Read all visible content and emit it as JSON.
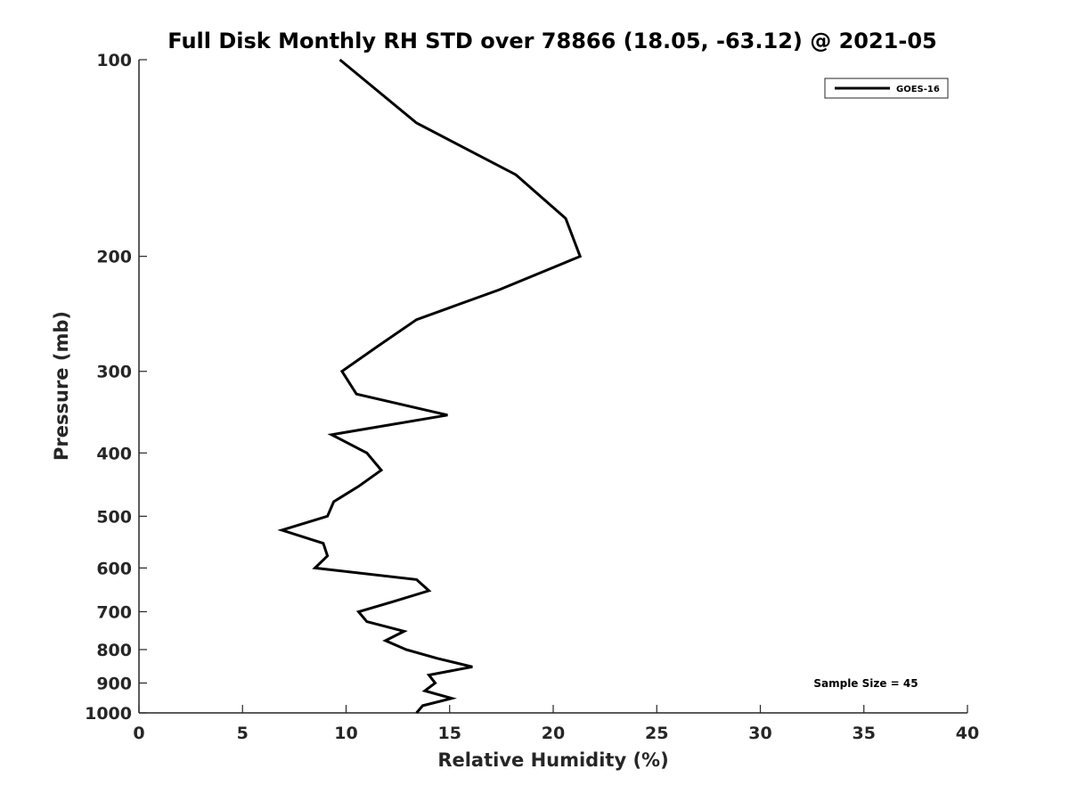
{
  "chart_data": {
    "type": "line",
    "title": "Full Disk Monthly RH STD over 78866 (18.05, -63.12) @ 2021-05",
    "xlabel": "Relative Humidity (%)",
    "ylabel": "Pressure (mb)",
    "xlim": [
      0,
      40
    ],
    "ylim": [
      100,
      1000
    ],
    "y_scale": "log",
    "y_reversed": true,
    "x_ticks": [
      "0",
      "5",
      "10",
      "15",
      "20",
      "25",
      "30",
      "35",
      "40"
    ],
    "y_ticks": [
      "100",
      "200",
      "300",
      "400",
      "500",
      "600",
      "700",
      "800",
      "900",
      "1000"
    ],
    "grid": false,
    "legend_position": "top-right",
    "annotation": "Sample Size = 45",
    "series": [
      {
        "name": "GOES-16",
        "color": "#000000",
        "points": [
          {
            "x": 9.7,
            "y": 100
          },
          {
            "x": 13.4,
            "y": 125
          },
          {
            "x": 18.2,
            "y": 150
          },
          {
            "x": 20.6,
            "y": 175
          },
          {
            "x": 21.3,
            "y": 200
          },
          {
            "x": 17.4,
            "y": 225
          },
          {
            "x": 13.4,
            "y": 250
          },
          {
            "x": 11.5,
            "y": 275
          },
          {
            "x": 9.8,
            "y": 300
          },
          {
            "x": 10.5,
            "y": 325
          },
          {
            "x": 14.9,
            "y": 350
          },
          {
            "x": 9.3,
            "y": 375
          },
          {
            "x": 11.0,
            "y": 400
          },
          {
            "x": 11.7,
            "y": 425
          },
          {
            "x": 10.6,
            "y": 450
          },
          {
            "x": 9.4,
            "y": 475
          },
          {
            "x": 9.1,
            "y": 500
          },
          {
            "x": 6.9,
            "y": 525
          },
          {
            "x": 8.9,
            "y": 550
          },
          {
            "x": 9.1,
            "y": 575
          },
          {
            "x": 8.5,
            "y": 600
          },
          {
            "x": 13.4,
            "y": 625
          },
          {
            "x": 14.0,
            "y": 650
          },
          {
            "x": 12.3,
            "y": 675
          },
          {
            "x": 10.6,
            "y": 700
          },
          {
            "x": 11.0,
            "y": 725
          },
          {
            "x": 12.8,
            "y": 750
          },
          {
            "x": 11.9,
            "y": 775
          },
          {
            "x": 12.9,
            "y": 800
          },
          {
            "x": 14.4,
            "y": 825
          },
          {
            "x": 16.1,
            "y": 850
          },
          {
            "x": 14.0,
            "y": 875
          },
          {
            "x": 14.3,
            "y": 900
          },
          {
            "x": 13.8,
            "y": 925
          },
          {
            "x": 15.1,
            "y": 950
          },
          {
            "x": 13.7,
            "y": 975
          },
          {
            "x": 13.4,
            "y": 1000
          }
        ]
      }
    ]
  }
}
